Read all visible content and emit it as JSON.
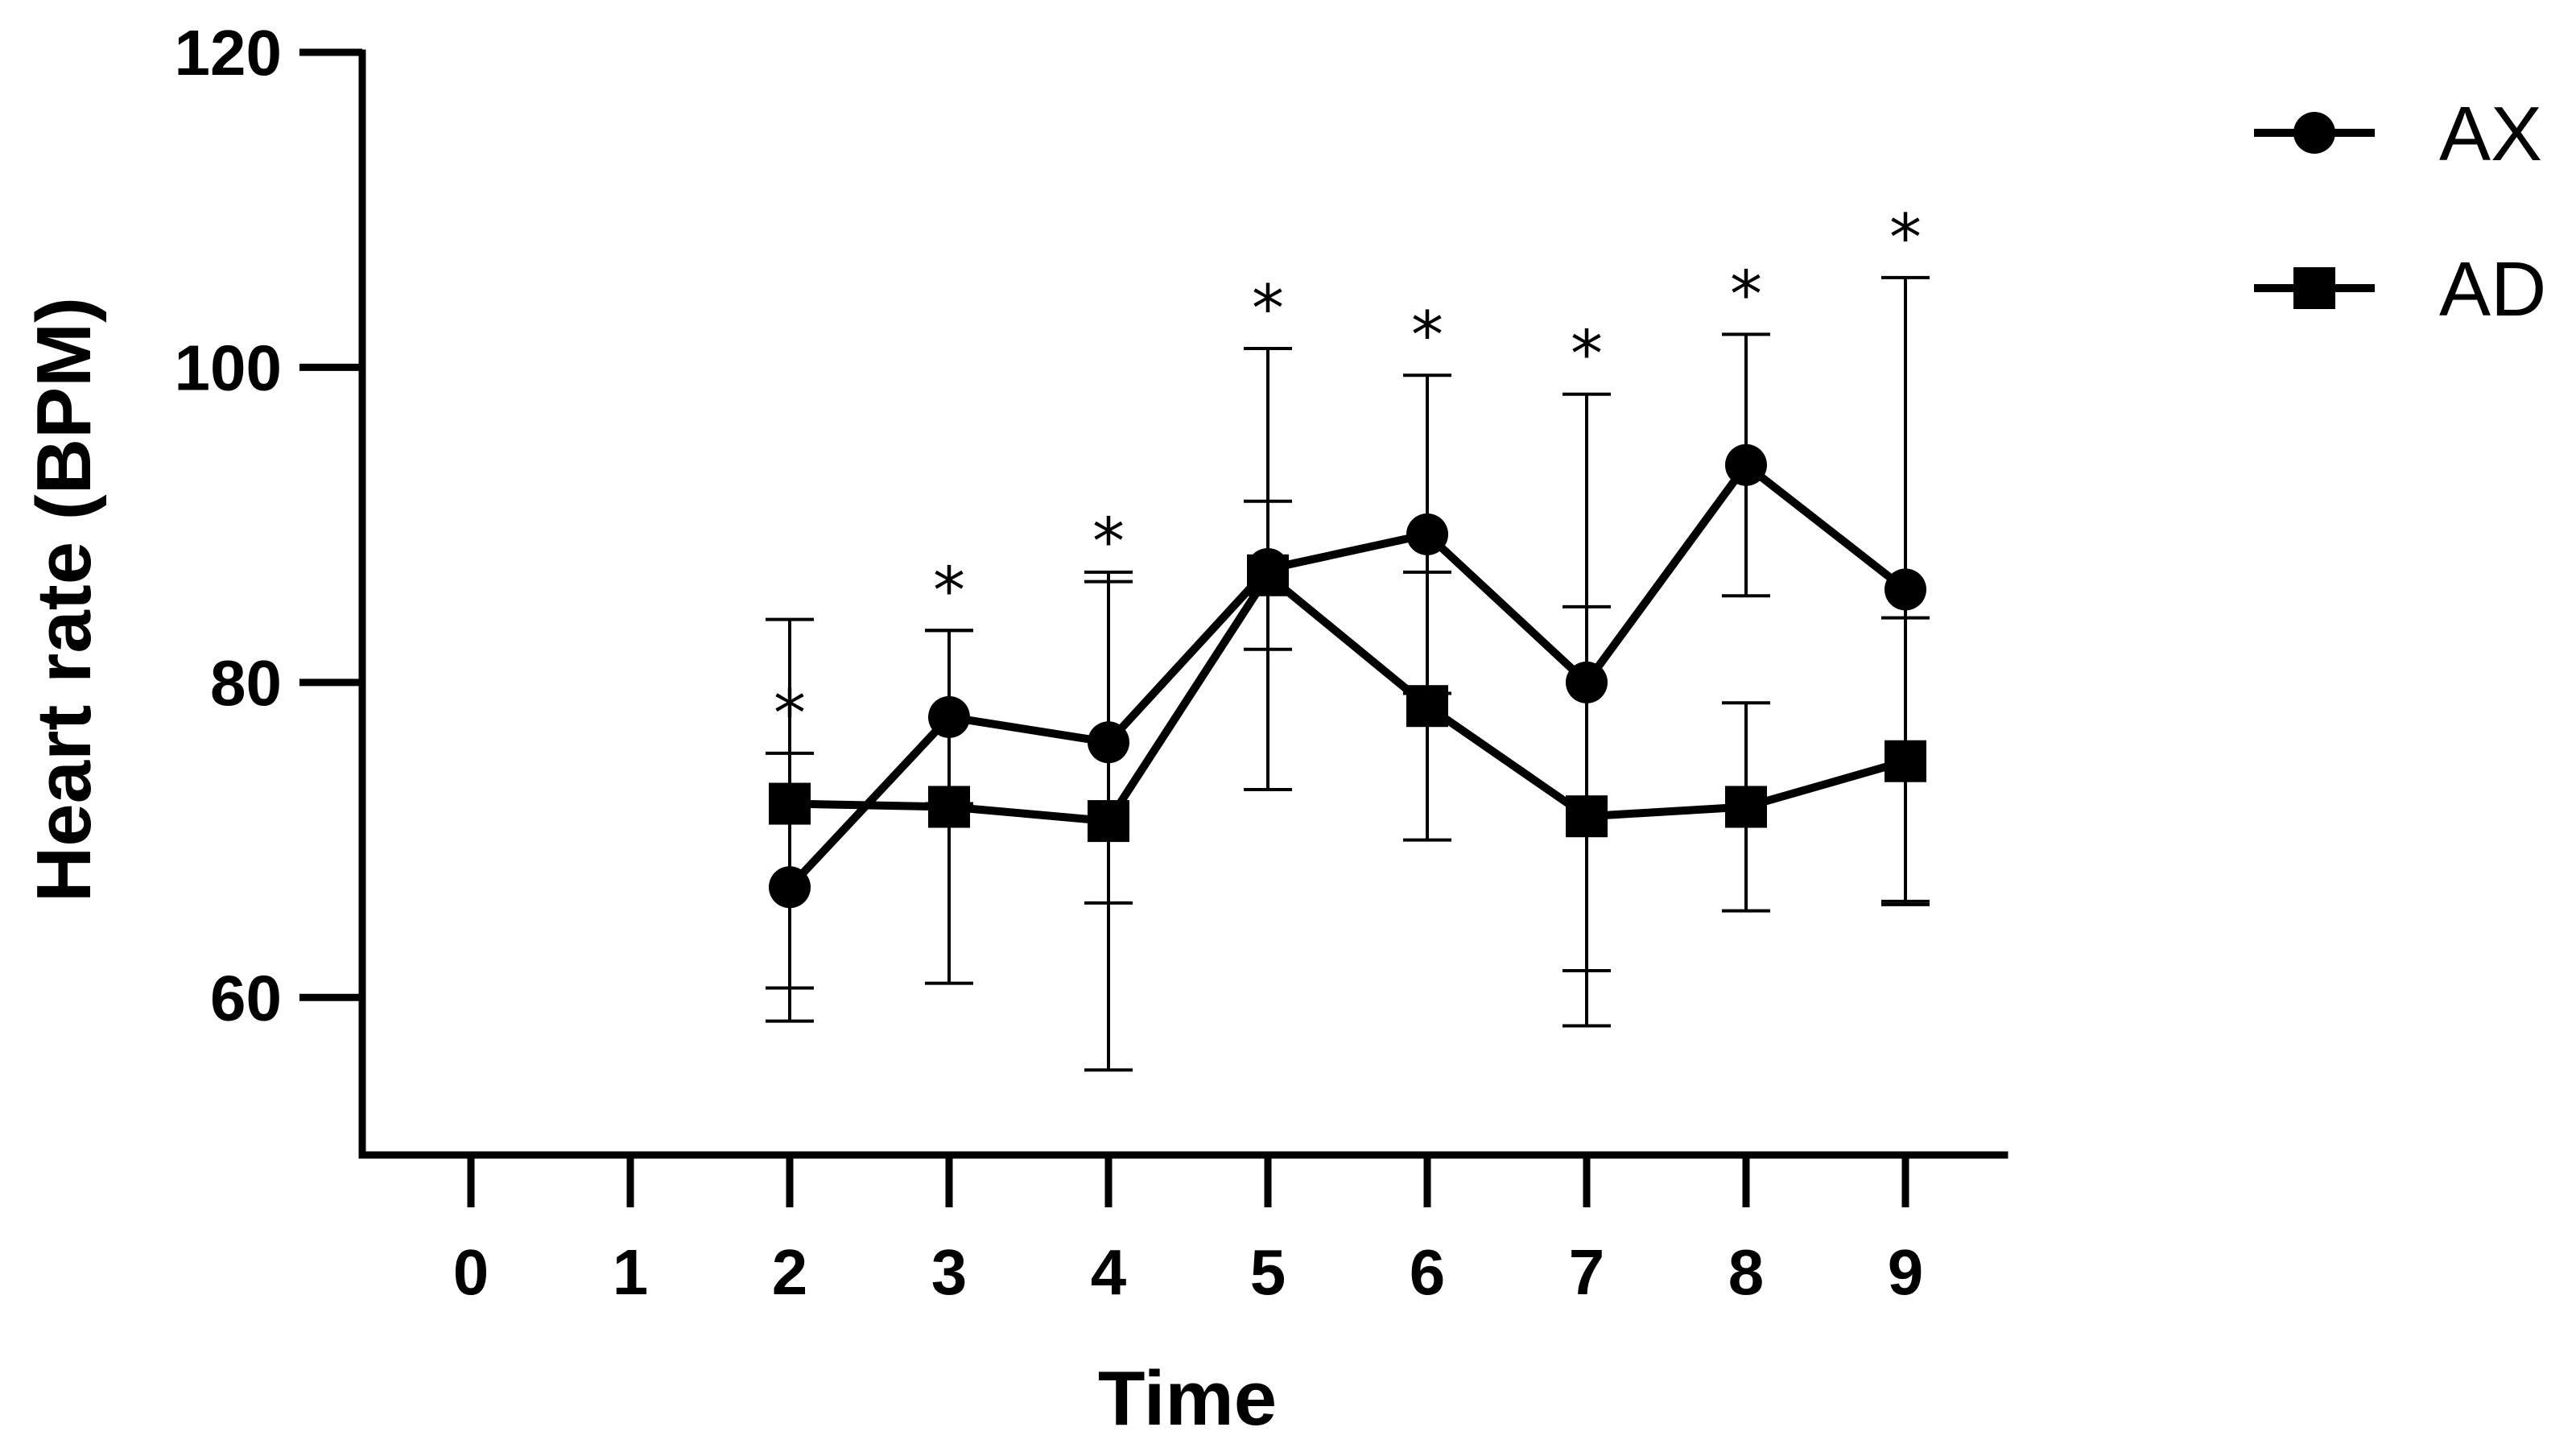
{
  "chart_data": {
    "type": "line",
    "title": "",
    "xlabel": "Time",
    "ylabel": "Heart rate (BPM)",
    "x_categories": [
      "0",
      "1",
      "2",
      "3",
      "4",
      "5",
      "6",
      "7",
      "8",
      "9"
    ],
    "y_ticks": [
      60,
      80,
      100,
      120
    ],
    "ylim": [
      50,
      120
    ],
    "legend_position": "top-right",
    "series": [
      {
        "name": "AX",
        "marker": "circle",
        "x": [
          2,
          3,
          4,
          5,
          6,
          7,
          8,
          9
        ],
        "values": [
          67.0,
          77.8,
          76.2,
          87.2,
          89.4,
          80.0,
          93.8,
          85.9
        ],
        "error": [
          8.5,
          5.5,
          10.2,
          14.0,
          10.1,
          18.3,
          8.3,
          19.8
        ]
      },
      {
        "name": "AD",
        "marker": "square",
        "x": [
          2,
          3,
          4,
          5,
          6,
          7,
          8,
          9
        ],
        "values": [
          72.3,
          72.1,
          71.2,
          86.8,
          78.5,
          71.5,
          72.1,
          75.0
        ],
        "error": [
          11.7,
          11.2,
          15.8,
          4.7,
          8.5,
          13.3,
          6.6,
          9.1
        ]
      }
    ],
    "annotations": [
      {
        "x": 2,
        "text": "*"
      },
      {
        "x": 3,
        "text": "*"
      },
      {
        "x": 4,
        "text": "*"
      },
      {
        "x": 5,
        "text": "*"
      },
      {
        "x": 6,
        "text": "*"
      },
      {
        "x": 7,
        "text": "*"
      },
      {
        "x": 8,
        "text": "*"
      },
      {
        "x": 9,
        "text": "*"
      }
    ]
  }
}
